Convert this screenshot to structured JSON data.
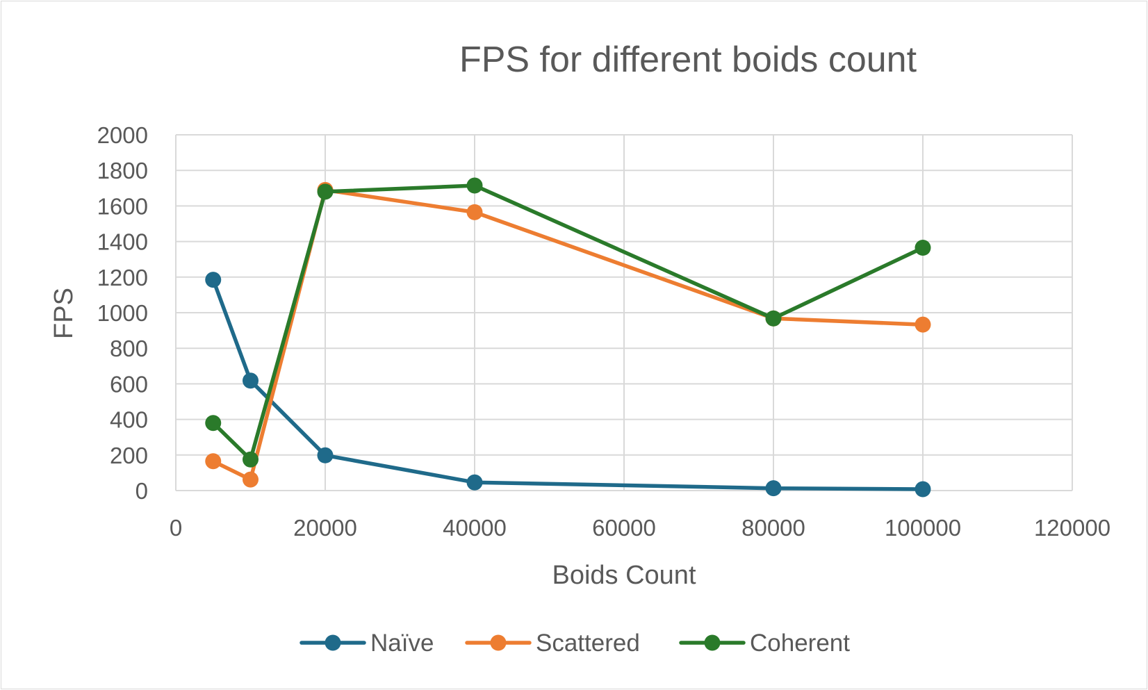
{
  "chart_data": {
    "type": "line",
    "title": "FPS for different boids count",
    "xlabel": "Boids Count",
    "ylabel": "FPS",
    "xlim": [
      0,
      120000
    ],
    "ylim": [
      0,
      2000
    ],
    "x_ticks": [
      0,
      20000,
      40000,
      60000,
      80000,
      100000,
      120000
    ],
    "y_ticks": [
      0,
      200,
      400,
      600,
      800,
      1000,
      1200,
      1400,
      1600,
      1800,
      2000
    ],
    "grid": true,
    "legend_position": "bottom",
    "series": [
      {
        "name": "Naïve",
        "color": "#1f6a8a",
        "x": [
          5000,
          10000,
          20000,
          40000,
          80000,
          100000
        ],
        "y": [
          1185,
          618,
          198,
          46,
          13,
          8
        ]
      },
      {
        "name": "Scattered",
        "color": "#ed7d31",
        "x": [
          5000,
          10000,
          20000,
          40000,
          80000,
          100000
        ],
        "y": [
          165,
          62,
          1690,
          1565,
          968,
          933
        ]
      },
      {
        "name": "Coherent",
        "color": "#2a7a2a",
        "x": [
          5000,
          10000,
          20000,
          40000,
          80000,
          100000
        ],
        "y": [
          380,
          175,
          1680,
          1715,
          968,
          1365
        ]
      }
    ]
  }
}
